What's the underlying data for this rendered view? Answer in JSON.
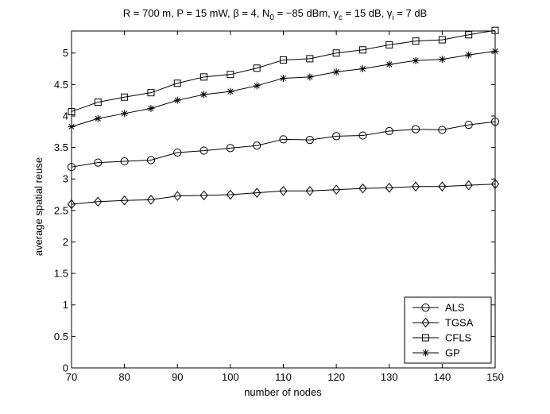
{
  "chart_data": {
    "type": "line",
    "title_parts": {
      "a": "R = 700 m, P = 15 mW, β = 4, N",
      "a_sub": "0",
      "b": " = −85 dBm, γ",
      "b_sub": "c",
      "c": " = 15 dB, γ",
      "c_sub": "i",
      "d": " = 7 dB"
    },
    "xlabel": "number of nodes",
    "ylabel": "average spatial reuse",
    "xlim": [
      70,
      150
    ],
    "ylim": [
      0,
      5.35
    ],
    "xticks": [
      70,
      80,
      90,
      100,
      110,
      120,
      130,
      140,
      150
    ],
    "yticks": [
      0,
      0.5,
      1,
      1.5,
      2,
      2.5,
      3,
      3.5,
      4,
      4.5,
      5
    ],
    "ytick_labels": [
      "0",
      "0.5",
      "1",
      "1.5",
      "2",
      "2.5",
      "3",
      "3.5",
      "4",
      "4.5",
      "5"
    ],
    "grid": false,
    "legend_position": "bottom-right",
    "x": [
      70,
      75,
      80,
      85,
      90,
      95,
      100,
      105,
      110,
      115,
      120,
      125,
      130,
      135,
      140,
      145,
      150
    ],
    "series": [
      {
        "name": "ALS",
        "marker": "circle",
        "values": [
          3.19,
          3.26,
          3.28,
          3.3,
          3.42,
          3.45,
          3.49,
          3.53,
          3.63,
          3.62,
          3.68,
          3.69,
          3.76,
          3.79,
          3.78,
          3.86,
          3.91
        ]
      },
      {
        "name": "TGSA",
        "marker": "diamond",
        "values": [
          2.6,
          2.64,
          2.66,
          2.67,
          2.73,
          2.74,
          2.75,
          2.78,
          2.81,
          2.81,
          2.83,
          2.85,
          2.86,
          2.88,
          2.88,
          2.9,
          2.92
        ]
      },
      {
        "name": "CFLS",
        "marker": "square",
        "values": [
          4.07,
          4.22,
          4.3,
          4.37,
          4.52,
          4.62,
          4.66,
          4.76,
          4.89,
          4.91,
          5.0,
          5.05,
          5.13,
          5.19,
          5.21,
          5.29,
          5.36
        ]
      },
      {
        "name": "GP",
        "marker": "asterisk",
        "values": [
          3.83,
          3.96,
          4.04,
          4.12,
          4.25,
          4.34,
          4.39,
          4.48,
          4.6,
          4.62,
          4.7,
          4.75,
          4.82,
          4.88,
          4.9,
          4.97,
          5.03
        ]
      }
    ]
  }
}
